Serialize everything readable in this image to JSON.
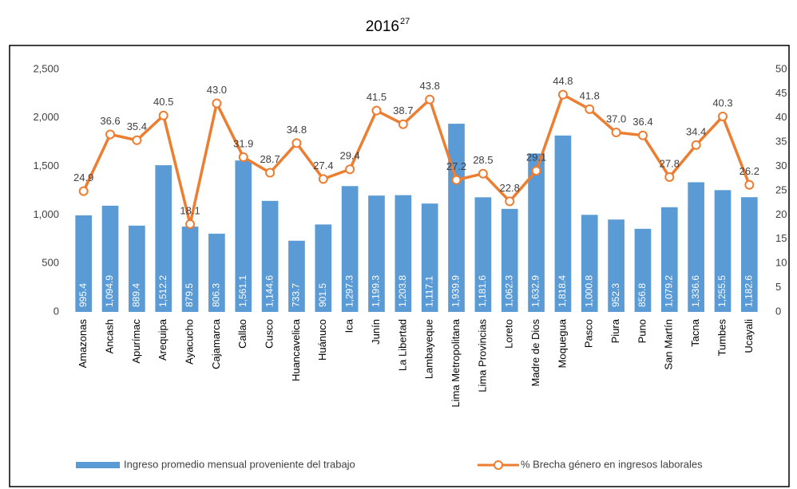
{
  "chart_data": {
    "type": "bar_line",
    "title": "2016",
    "title_superscript": "27",
    "categories": [
      "Amazonas",
      "Ancash",
      "Apurímac",
      "Arequipa",
      "Ayacucho",
      "Cajamarca",
      "Callao",
      "Cusco",
      "Huancavelica",
      "Huánuco",
      "Ica",
      "Junín",
      "La Libertad",
      "Lambayeque",
      "Lima Metropolitana",
      "Lima Provincias",
      "Loreto",
      "Madre de Dios",
      "Moquegua",
      "Pasco",
      "Piura",
      "Puno",
      "San Martín",
      "Tacna",
      "Tumbes",
      "Ucayali"
    ],
    "series": [
      {
        "name": "Ingreso promedio mensual proveniente del trabajo",
        "type": "bar",
        "color": "#5b9bd5",
        "values": [
          995.4,
          1094.9,
          889.4,
          1512.2,
          879.5,
          806.3,
          1561.1,
          1144.6,
          733.7,
          901.5,
          1297.3,
          1199.3,
          1203.8,
          1117.1,
          1939.9,
          1181.6,
          1062.3,
          1632.9,
          1818.4,
          1000.8,
          952.3,
          856.8,
          1079.2,
          1336.6,
          1255.5,
          1182.6
        ],
        "value_labels": [
          "995.4",
          "1,094.9",
          "889.4",
          "1,512.2",
          "879.5",
          "806.3",
          "1,561.1",
          "1,144.6",
          "733.7",
          "901.5",
          "1,297.3",
          "1,199.3",
          "1,203.8",
          "1,117.1",
          "1,939.9",
          "1,181.6",
          "1,062.3",
          "1,632.9",
          "1,818.4",
          "1,000.8",
          "952.3",
          "856.8",
          "1,079.2",
          "1,336.6",
          "1,255.5",
          "1,182.6"
        ]
      },
      {
        "name": "% Brecha género en ingresos laborales",
        "type": "line",
        "axis": "y2",
        "color": "#ed7d31",
        "values": [
          24.9,
          36.6,
          35.4,
          40.5,
          18.1,
          43.0,
          31.9,
          28.7,
          34.8,
          27.4,
          29.4,
          41.5,
          38.7,
          43.8,
          27.2,
          28.5,
          22.8,
          29.1,
          44.8,
          41.8,
          37.0,
          36.4,
          27.8,
          34.4,
          40.3,
          26.2
        ],
        "value_labels": [
          "24.9",
          "36.6",
          "35.4",
          "40.5",
          "18.1",
          "43.0",
          "31.9",
          "28.7",
          "34.8",
          "27.4",
          "29.4",
          "41.5",
          "38.7",
          "43.8",
          "27.2",
          "28.5",
          "22.8",
          "29.1",
          "44.8",
          "41.8",
          "37.0",
          "36.4",
          "27.8",
          "34.4",
          "40.3",
          "26.2"
        ]
      }
    ],
    "ylim": [
      0,
      2500
    ],
    "yticks": [
      0,
      500,
      {
        "value": 1000,
        "label": "1,000"
      },
      {
        "value": 1500,
        "label": "1,500"
      },
      {
        "value": 2000,
        "label": "2,000"
      },
      {
        "value": 2500,
        "label": "2,500"
      }
    ],
    "y2lim": [
      0,
      50
    ],
    "y2ticks": [
      0,
      5,
      10,
      15,
      20,
      25,
      30,
      35,
      40,
      45,
      50
    ],
    "grid": false,
    "legend": "bottom"
  }
}
